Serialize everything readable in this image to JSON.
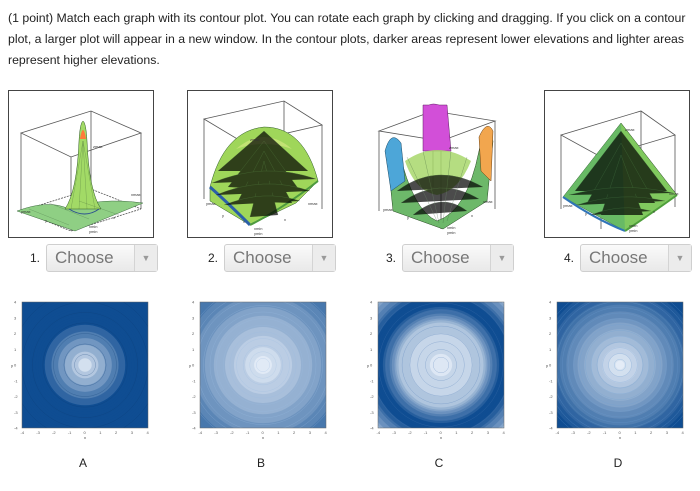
{
  "question": {
    "text": "(1 point) Match each graph with its contour plot. You can rotate each graph by clicking and dragging. If you click on a contour plot, a larger plot will appear in a new window. In the contour plots, darker areas represent lower elevations and lighter areas represent higher elevations."
  },
  "graphs": [
    {
      "number": "1.",
      "select_label": "Choose",
      "axis_labels": [
        "zmax",
        "xmax",
        "ymax",
        "y",
        "x",
        "xmin",
        "ymin"
      ]
    },
    {
      "number": "2.",
      "select_label": "Choose",
      "axis_labels": [
        "zmax",
        "xmax",
        "ymax",
        "y",
        "x",
        "xmin",
        "ymin"
      ]
    },
    {
      "number": "3.",
      "select_label": "Choose",
      "axis_labels": [
        "zmax",
        "xmax",
        "ymax",
        "y",
        "x",
        "xmin",
        "ymin"
      ]
    },
    {
      "number": "4.",
      "select_label": "Choose",
      "axis_labels": [
        "zmax",
        "xmax",
        "ymax",
        "y",
        "x",
        "xmin",
        "ymin"
      ]
    }
  ],
  "contours": [
    {
      "letter": "A"
    },
    {
      "letter": "B"
    },
    {
      "letter": "C"
    },
    {
      "letter": "D"
    }
  ],
  "axis_ticks": [
    "-4",
    "-3",
    "-2",
    "-1",
    "0",
    "1",
    "2",
    "3",
    "4"
  ],
  "axis_names": {
    "x": "x",
    "y": "y"
  },
  "colors": {
    "contour_dark": "#0f4d92",
    "contour_light": "#f4f8ff",
    "select_text": "#777777",
    "select_border": "#cfcfcf"
  },
  "icons": {
    "caret": "chevron-down-icon"
  }
}
